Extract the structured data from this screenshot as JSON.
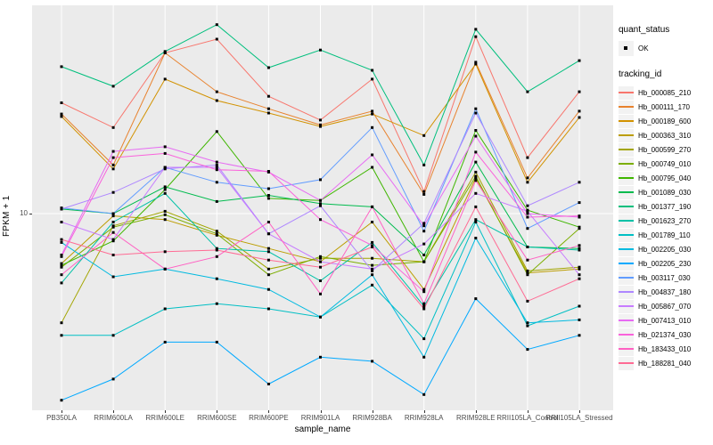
{
  "figure": {
    "x_axis_title": "sample_name",
    "y_axis_title": "FPKM + 1",
    "panel_background": "#EBEBEB",
    "gridline_color": "#FFFFFF",
    "point_color": "#000000",
    "legend": {
      "quant_status_title": "quant_status",
      "quant_status_items": [
        "OK"
      ],
      "tracking_id_title": "tracking_id",
      "key_background": "#F2F2F2"
    }
  },
  "chart_data": {
    "type": "line",
    "title": "",
    "xlabel": "sample_name",
    "ylabel": "FPKM + 1",
    "yscale": "log10",
    "ylim": [
      1.8,
      62
    ],
    "y_tick_values": [
      10
    ],
    "y_tick_labels": [
      "10"
    ],
    "grid": "white vertical gridline at each sample; horizontal gridline at y=10; grey panel",
    "legend_position": "right",
    "point_legend": {
      "title": "quant_status",
      "label": "OK",
      "marker": "black point at every value"
    },
    "series_legend_title": "tracking_id",
    "categories": [
      "PB350LA",
      "RRIM600LA",
      "RRIM600LE",
      "RRIM600SE",
      "RRIM600PE",
      "RRIM901LA",
      "RRIM928BA",
      "RRIM928LA",
      "RRIM928LE",
      "RRII105LA_Control",
      "RRII105LA_Stressed"
    ],
    "series": [
      {
        "name": "Hb_000085_210",
        "color": "#F8766D",
        "values": [
          26.0,
          21.0,
          40.0,
          45.0,
          27.5,
          22.4,
          31.9,
          12.1,
          46.0,
          16.2,
          28.6
        ]
      },
      {
        "name": "Hb_000111_170",
        "color": "#E8822E",
        "values": [
          23.6,
          15.2,
          40.0,
          28.6,
          24.7,
          21.5,
          24.2,
          11.8,
          36.9,
          13.6,
          24.2
        ]
      },
      {
        "name": "Hb_000189_600",
        "color": "#D29200",
        "values": [
          23.1,
          14.7,
          31.9,
          26.5,
          23.8,
          21.2,
          23.6,
          19.6,
          36.3,
          13.1,
          22.9
        ]
      },
      {
        "name": "Hb_000363_310",
        "color": "#BC9D00",
        "values": [
          6.5,
          9.8,
          9.5,
          8.3,
          7.4,
          6.6,
          9.3,
          5.2,
          13.6,
          6.0,
          6.2
        ]
      },
      {
        "name": "Hb_000599_270",
        "color": "#A3A500",
        "values": [
          3.9,
          9.0,
          10.2,
          8.6,
          6.2,
          6.8,
          6.8,
          6.6,
          14.3,
          6.1,
          6.3
        ]
      },
      {
        "name": "Hb_000749_010",
        "color": "#7CAE00",
        "values": [
          6.3,
          8.9,
          9.9,
          8.4,
          5.9,
          6.9,
          6.4,
          6.6,
          13.8,
          5.9,
          8.8
        ]
      },
      {
        "name": "Hb_000795_040",
        "color": "#3FB600",
        "values": [
          6.4,
          7.9,
          12.3,
          20.3,
          11.4,
          11.2,
          14.9,
          6.6,
          20.5,
          10.3,
          8.9
        ]
      },
      {
        "name": "Hb_001089_030",
        "color": "#00BB4E",
        "values": [
          10.4,
          10.0,
          12.6,
          11.1,
          11.7,
          10.9,
          10.6,
          7.0,
          15.6,
          7.5,
          7.4
        ]
      },
      {
        "name": "Hb_001377_190",
        "color": "#00BF7D",
        "values": [
          35.5,
          30.0,
          40.5,
          51.0,
          35.2,
          41.0,
          34.4,
          15.2,
          49.0,
          28.6,
          37.4
        ]
      },
      {
        "name": "Hb_001623_270",
        "color": "#00C1A7",
        "values": [
          5.5,
          9.3,
          11.9,
          7.4,
          7.2,
          5.6,
          7.8,
          4.5,
          9.5,
          7.5,
          7.3
        ]
      },
      {
        "name": "Hb_001789_110",
        "color": "#00BFC4",
        "values": [
          3.5,
          3.5,
          4.4,
          4.6,
          4.4,
          4.1,
          5.4,
          3.4,
          9.3,
          3.8,
          4.5
        ]
      },
      {
        "name": "Hb_002205_030",
        "color": "#00BAE0",
        "values": [
          7.8,
          5.8,
          6.2,
          5.7,
          5.2,
          4.1,
          5.9,
          2.9,
          8.1,
          3.9,
          4.0
        ]
      },
      {
        "name": "Hb_002205_230",
        "color": "#00A9FF",
        "values": [
          2.0,
          2.4,
          3.3,
          3.3,
          2.3,
          2.9,
          2.8,
          2.1,
          4.8,
          3.1,
          3.5
        ]
      },
      {
        "name": "Hb_003117_030",
        "color": "#619CFF",
        "values": [
          10.5,
          10.0,
          14.9,
          13.1,
          12.4,
          13.4,
          21.0,
          8.6,
          24.7,
          8.8,
          11.0
        ]
      },
      {
        "name": "Hb_004837_180",
        "color": "#AE87FF",
        "values": [
          10.4,
          12.0,
          14.7,
          15.2,
          8.4,
          10.7,
          6.1,
          9.2,
          23.8,
          10.7,
          13.1
        ]
      },
      {
        "name": "Hb_005867_070",
        "color": "#C77CFF",
        "values": [
          9.3,
          8.0,
          14.9,
          14.9,
          8.4,
          6.6,
          6.2,
          7.7,
          11.9,
          10.2,
          5.9
        ]
      },
      {
        "name": "Hb_007413_010",
        "color": "#E76BF3",
        "values": [
          7.0,
          17.1,
          17.8,
          15.6,
          14.3,
          11.2,
          16.6,
          9.0,
          19.5,
          10.0,
          9.7
        ]
      },
      {
        "name": "Hb_021374_030",
        "color": "#FA62DB",
        "values": [
          6.9,
          16.2,
          16.8,
          14.6,
          14.4,
          9.5,
          7.6,
          5.1,
          17.0,
          9.7,
          9.8
        ]
      },
      {
        "name": "Hb_183433_010",
        "color": "#FF61C3",
        "values": [
          5.9,
          8.5,
          6.2,
          6.9,
          9.3,
          5.0,
          10.6,
          4.6,
          13.3,
          6.7,
          7.6
        ]
      },
      {
        "name": "Hb_188281_040",
        "color": "#FF6B94",
        "values": [
          8.0,
          7.0,
          7.2,
          7.3,
          6.7,
          6.3,
          7.5,
          4.4,
          10.6,
          4.7,
          5.7
        ]
      }
    ]
  }
}
